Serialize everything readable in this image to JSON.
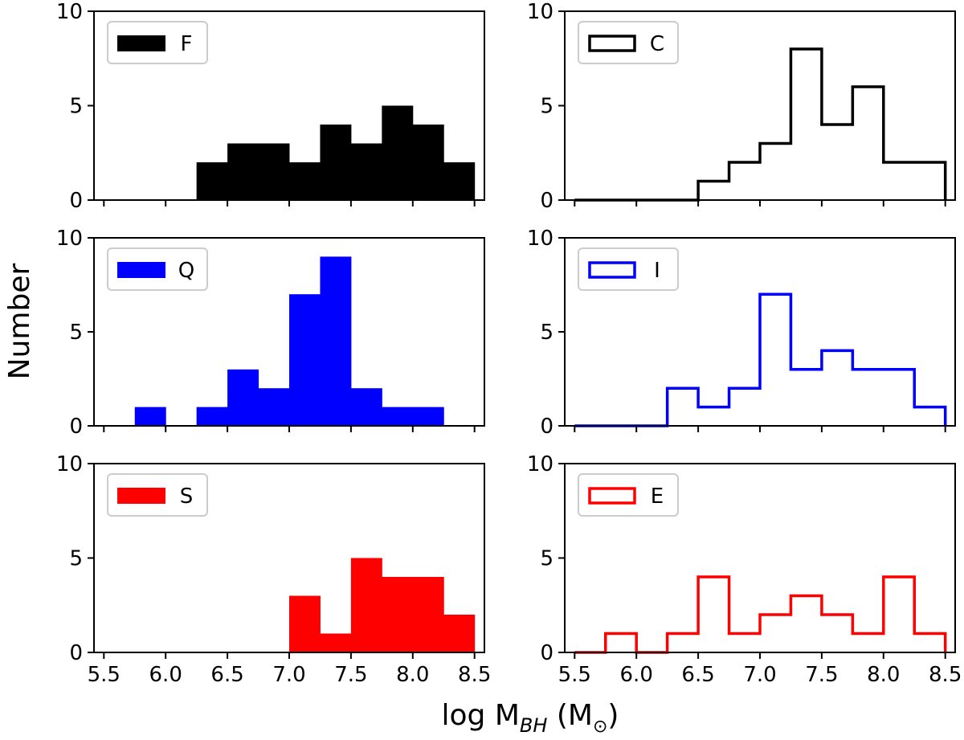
{
  "figure": {
    "ylabel": "Number",
    "xlabel_main": "log M",
    "xlabel_sub": "BH",
    "xlabel_unit_open": " (M",
    "xlabel_unit_sym": "⊙",
    "xlabel_unit_close": ")"
  },
  "chart_data": [
    {
      "type": "bar",
      "style": "filled",
      "legend": "F",
      "color": "#000000",
      "bin_edges": [
        5.5,
        5.75,
        6.0,
        6.25,
        6.5,
        6.75,
        7.0,
        7.25,
        7.5,
        7.75,
        8.0,
        8.25,
        8.5
      ],
      "counts": [
        0,
        0,
        0,
        2,
        3,
        3,
        2,
        4,
        3,
        5,
        4,
        2
      ],
      "xlim": [
        5.42,
        8.58
      ],
      "ylim": [
        0,
        10
      ],
      "xticks": [
        "5.5",
        "6.0",
        "6.5",
        "7.0",
        "7.5",
        "8.0",
        "8.5"
      ],
      "yticks": [
        "0",
        "5",
        "10"
      ],
      "show_xticklabels": false,
      "legend_position": "top-left"
    },
    {
      "type": "bar",
      "style": "step",
      "legend": "C",
      "color": "#000000",
      "bin_edges": [
        5.5,
        5.75,
        6.0,
        6.25,
        6.5,
        6.75,
        7.0,
        7.25,
        7.5,
        7.75,
        8.0,
        8.25,
        8.5
      ],
      "counts": [
        0,
        0,
        0,
        0,
        1,
        2,
        3,
        8,
        4,
        6,
        2,
        2
      ],
      "xlim": [
        5.42,
        8.58
      ],
      "ylim": [
        0,
        10
      ],
      "xticks": [
        "5.5",
        "6.0",
        "6.5",
        "7.0",
        "7.5",
        "8.0",
        "8.5"
      ],
      "yticks": [
        "0",
        "5",
        "10"
      ],
      "show_xticklabels": false,
      "legend_position": "top-left"
    },
    {
      "type": "bar",
      "style": "filled",
      "legend": "Q",
      "color": "#0000ff",
      "bin_edges": [
        5.5,
        5.75,
        6.0,
        6.25,
        6.5,
        6.75,
        7.0,
        7.25,
        7.5,
        7.75,
        8.0,
        8.25,
        8.5
      ],
      "counts": [
        0,
        1,
        0,
        1,
        3,
        2,
        7,
        9,
        2,
        1,
        1,
        0
      ],
      "xlim": [
        5.42,
        8.58
      ],
      "ylim": [
        0,
        10
      ],
      "xticks": [
        "5.5",
        "6.0",
        "6.5",
        "7.0",
        "7.5",
        "8.0",
        "8.5"
      ],
      "yticks": [
        "0",
        "5",
        "10"
      ],
      "show_xticklabels": false,
      "legend_position": "top-left"
    },
    {
      "type": "bar",
      "style": "step",
      "legend": "I",
      "color": "#0000ff",
      "bin_edges": [
        5.5,
        5.75,
        6.0,
        6.25,
        6.5,
        6.75,
        7.0,
        7.25,
        7.5,
        7.75,
        8.0,
        8.25,
        8.5
      ],
      "counts": [
        0,
        0,
        0,
        2,
        1,
        2,
        7,
        3,
        4,
        3,
        3,
        1
      ],
      "xlim": [
        5.42,
        8.58
      ],
      "ylim": [
        0,
        10
      ],
      "xticks": [
        "5.5",
        "6.0",
        "6.5",
        "7.0",
        "7.5",
        "8.0",
        "8.5"
      ],
      "yticks": [
        "0",
        "5",
        "10"
      ],
      "show_xticklabels": false,
      "legend_position": "top-left"
    },
    {
      "type": "bar",
      "style": "filled",
      "legend": "S",
      "color": "#ff0000",
      "bin_edges": [
        5.5,
        5.75,
        6.0,
        6.25,
        6.5,
        6.75,
        7.0,
        7.25,
        7.5,
        7.75,
        8.0,
        8.25,
        8.5
      ],
      "counts": [
        0,
        0,
        0,
        0,
        0,
        0,
        3,
        1,
        5,
        4,
        4,
        2
      ],
      "xlim": [
        5.42,
        8.58
      ],
      "ylim": [
        0,
        10
      ],
      "xticks": [
        "5.5",
        "6.0",
        "6.5",
        "7.0",
        "7.5",
        "8.0",
        "8.5"
      ],
      "yticks": [
        "0",
        "5",
        "10"
      ],
      "show_xticklabels": true,
      "legend_position": "top-left"
    },
    {
      "type": "bar",
      "style": "step",
      "legend": "E",
      "color": "#ff0000",
      "bin_edges": [
        5.5,
        5.75,
        6.0,
        6.25,
        6.5,
        6.75,
        7.0,
        7.25,
        7.5,
        7.75,
        8.0,
        8.25,
        8.5
      ],
      "counts": [
        0,
        1,
        0,
        1,
        4,
        1,
        2,
        3,
        2,
        1,
        4,
        1
      ],
      "xlim": [
        5.42,
        8.58
      ],
      "ylim": [
        0,
        10
      ],
      "xticks": [
        "5.5",
        "6.0",
        "6.5",
        "7.0",
        "7.5",
        "8.0",
        "8.5"
      ],
      "yticks": [
        "0",
        "5",
        "10"
      ],
      "show_xticklabels": true,
      "legend_position": "top-left"
    }
  ]
}
